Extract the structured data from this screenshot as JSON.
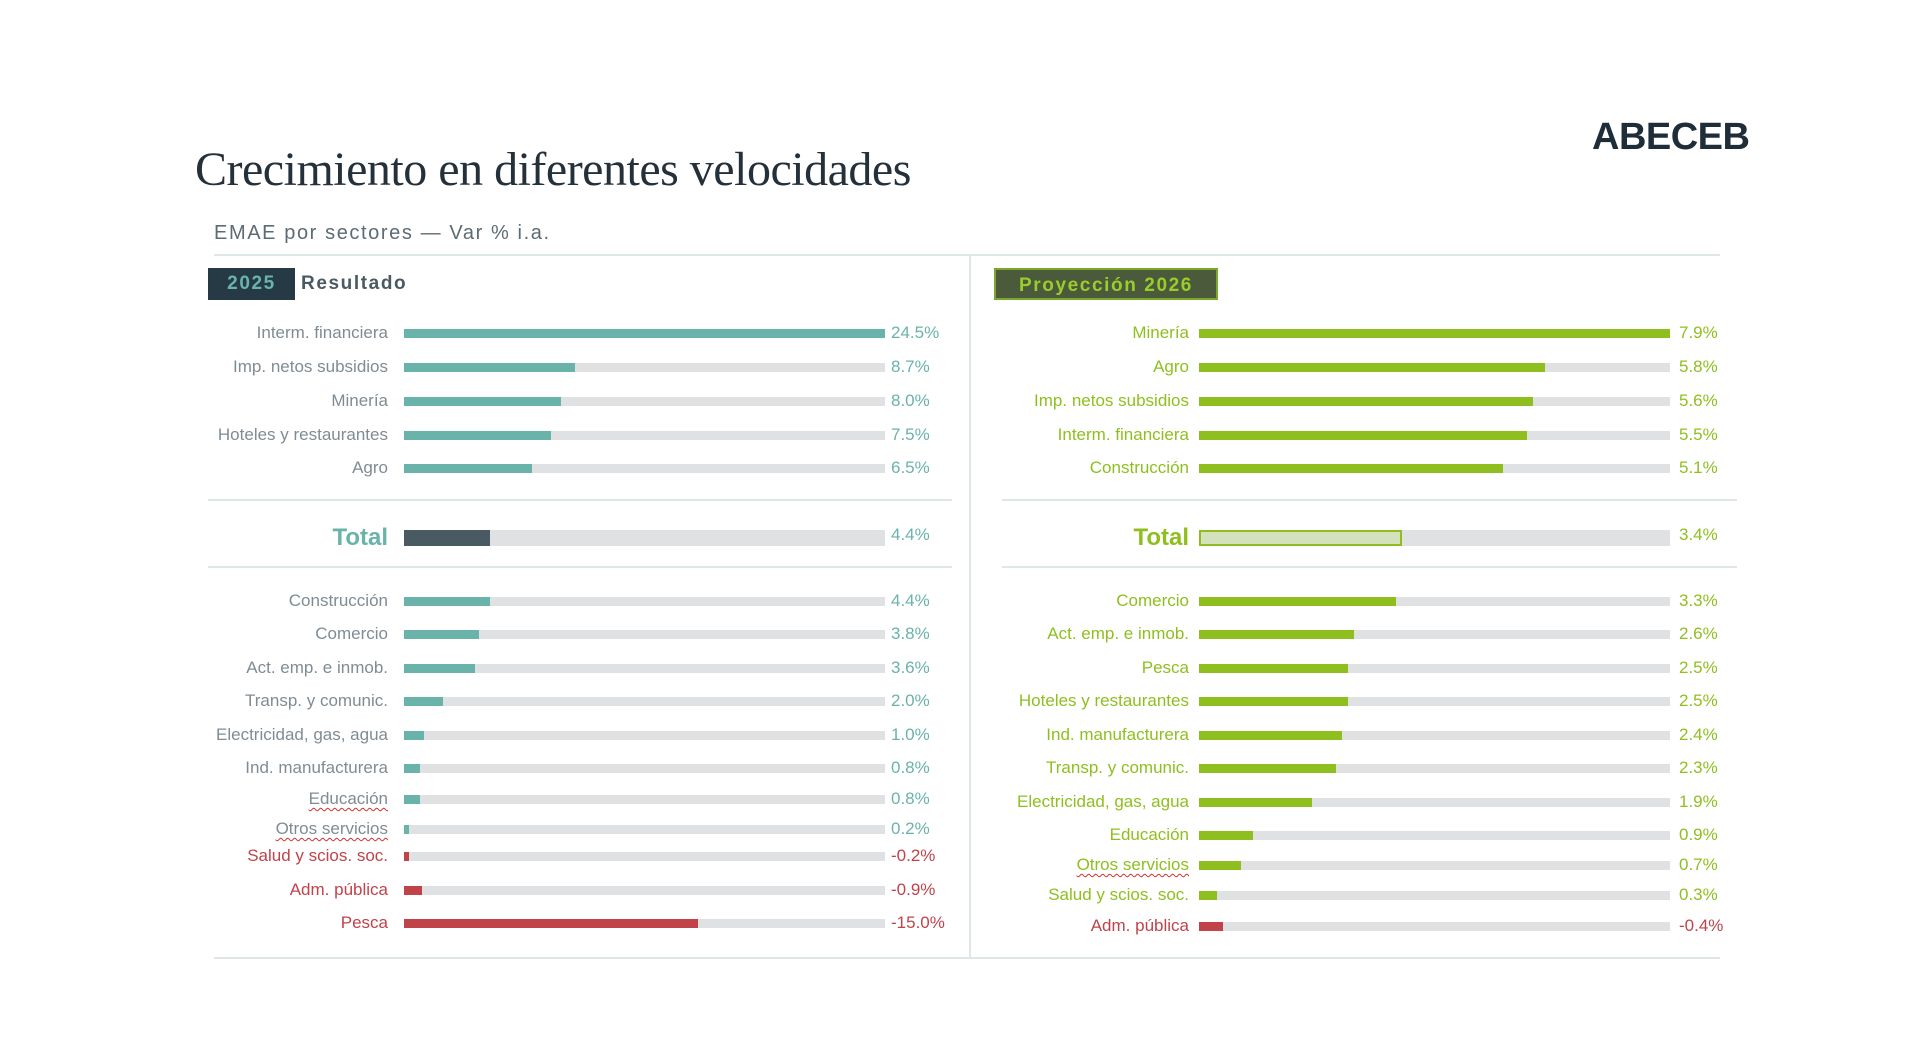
{
  "title": "Crecimiento en diferentes velocidades",
  "logo": "ABECEB",
  "subtitle": "EMAE por sectores — Var % i.a.",
  "colors": {
    "teal": "#6ab3ab",
    "dark": "#4a5a62",
    "red": "#c0434a",
    "green": "#8fbf1f",
    "green_light": "#d3e2bd",
    "track": "#e0e1e3",
    "label_gray": "#7f8c94"
  },
  "chart_data": [
    {
      "type": "bar",
      "orientation": "horizontal",
      "badge": "2025",
      "heading": "Resultado",
      "unit": "%",
      "top": [
        {
          "label": "Interm. financiera",
          "value": 24.5,
          "text": "24.5%"
        },
        {
          "label": "Imp. netos subsidios",
          "value": 8.7,
          "text": "8.7%"
        },
        {
          "label": "Minería",
          "value": 8.0,
          "text": "8.0%"
        },
        {
          "label": "Hoteles y restaurantes",
          "value": 7.5,
          "text": "7.5%"
        },
        {
          "label": "Agro",
          "value": 6.5,
          "text": "6.5%"
        }
      ],
      "total": {
        "label": "Total",
        "value": 4.4,
        "text": "4.4%"
      },
      "bottom": [
        {
          "label": "Construcción",
          "value": 4.4,
          "text": "4.4%"
        },
        {
          "label": "Comercio",
          "value": 3.8,
          "text": "3.8%"
        },
        {
          "label": "Act. emp. e inmob.",
          "value": 3.6,
          "text": "3.6%"
        },
        {
          "label": "Transp. y comunic.",
          "value": 2.0,
          "text": "2.0%"
        },
        {
          "label": "Electricidad, gas, agua",
          "value": 1.0,
          "text": "1.0%"
        },
        {
          "label": "Ind. manufacturera",
          "value": 0.8,
          "text": "0.8%"
        },
        {
          "label": "Educación",
          "value": 0.8,
          "text": "0.8%",
          "spellcheck": true
        },
        {
          "label": "Otros servicios",
          "value": 0.2,
          "text": "0.2%",
          "spellcheck": true
        },
        {
          "label": "Salud y scios. soc.",
          "value": -0.2,
          "text": "-0.2%"
        },
        {
          "label": "Adm. pública",
          "value": -0.9,
          "text": "-0.9%"
        },
        {
          "label": "Pesca",
          "value": -15.0,
          "text": "-15.0%"
        }
      ]
    },
    {
      "type": "bar",
      "orientation": "horizontal",
      "badge": "Proyección 2026",
      "unit": "%",
      "top": [
        {
          "label": "Minería",
          "value": 7.9,
          "text": "7.9%"
        },
        {
          "label": "Agro",
          "value": 5.8,
          "text": "5.8%"
        },
        {
          "label": "Imp. netos subsidios",
          "value": 5.6,
          "text": "5.6%"
        },
        {
          "label": "Interm. financiera",
          "value": 5.5,
          "text": "5.5%"
        },
        {
          "label": "Construcción",
          "value": 5.1,
          "text": "5.1%"
        }
      ],
      "total": {
        "label": "Total",
        "value": 3.4,
        "text": "3.4%"
      },
      "bottom": [
        {
          "label": "Comercio",
          "value": 3.3,
          "text": "3.3%"
        },
        {
          "label": "Act. emp. e inmob.",
          "value": 2.6,
          "text": "2.6%"
        },
        {
          "label": "Pesca",
          "value": 2.5,
          "text": "2.5%"
        },
        {
          "label": "Hoteles y restaurantes",
          "value": 2.5,
          "text": "2.5%"
        },
        {
          "label": "Ind. manufacturera",
          "value": 2.4,
          "text": "2.4%"
        },
        {
          "label": "Transp. y comunic.",
          "value": 2.3,
          "text": "2.3%"
        },
        {
          "label": "Electricidad, gas, agua",
          "value": 1.9,
          "text": "1.9%"
        },
        {
          "label": "Educación",
          "value": 0.9,
          "text": "0.9%"
        },
        {
          "label": "Otros servicios",
          "value": 0.7,
          "text": "0.7%",
          "spellcheck": true
        },
        {
          "label": "Salud y scios. soc.",
          "value": 0.3,
          "text": "0.3%"
        },
        {
          "label": "Adm. pública",
          "value": -0.4,
          "text": "-0.4%"
        }
      ]
    }
  ]
}
